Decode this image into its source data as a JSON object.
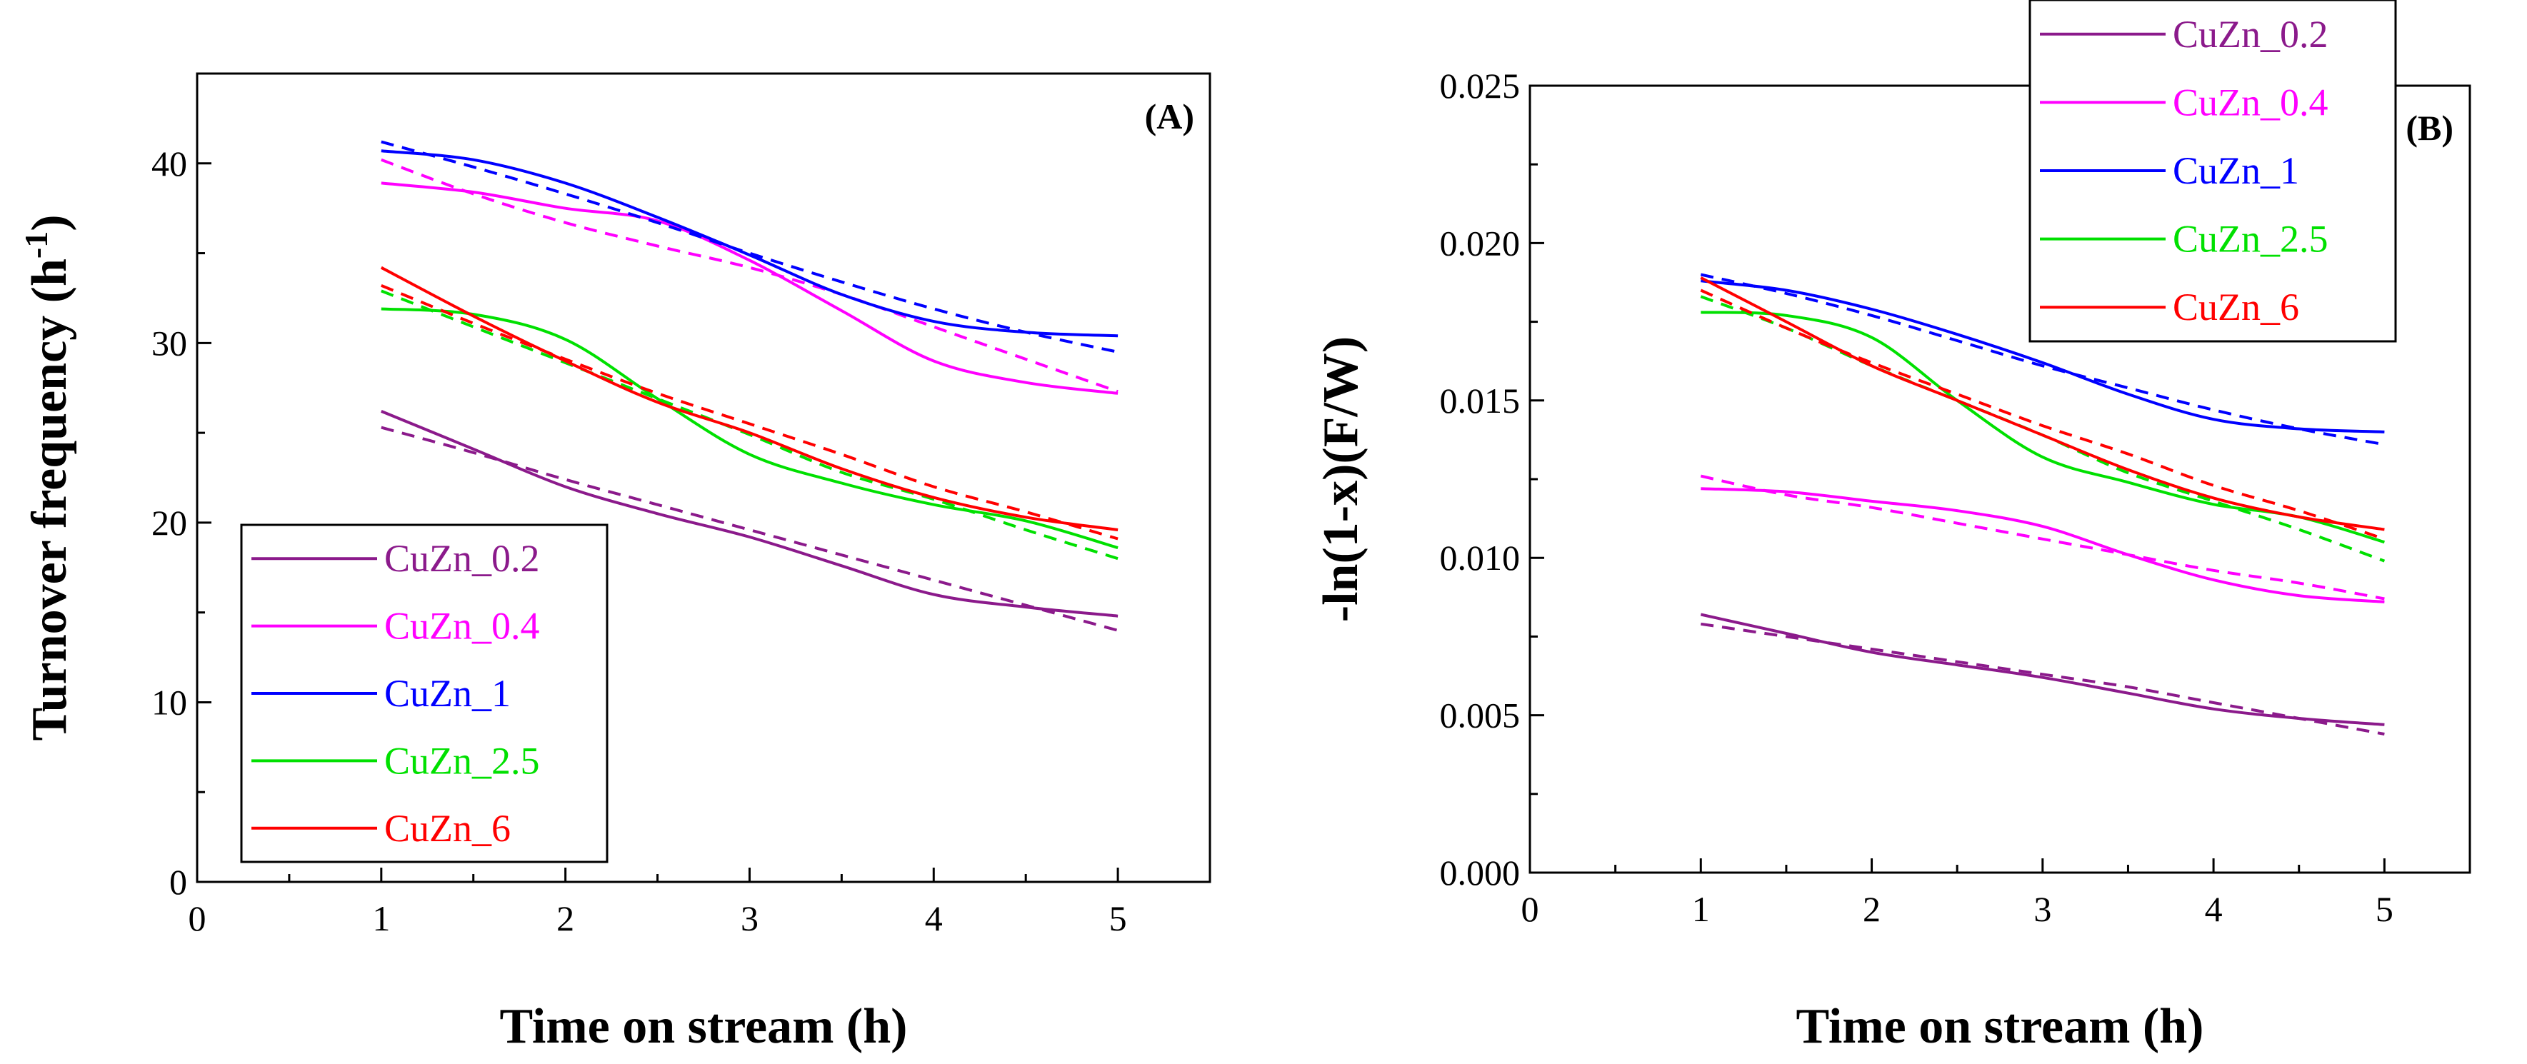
{
  "chart_data": [
    {
      "type": "line",
      "panel_label": "(A)",
      "xlabel": "Time on stream (h)",
      "ylabel": "Turnover frequency (h",
      "ylabel_sup": "-1",
      "ylabel_end": ")",
      "xlim": [
        0,
        5.5
      ],
      "ylim": [
        0,
        45
      ],
      "xticks": [
        "0",
        "1",
        "2",
        "3",
        "4",
        "5"
      ],
      "yticks": [
        "0",
        "10",
        "20",
        "30",
        "40"
      ],
      "legend_position": "bottom-left",
      "x": [
        1,
        1.5,
        2,
        2.5,
        3,
        3.5,
        4,
        4.5,
        5
      ],
      "series": [
        {
          "name": "CuZn_0.2",
          "color": "#8B1A8B",
          "solid": [
            26.2,
            24.1,
            22.0,
            20.5,
            19.2,
            17.6,
            16.0,
            15.3,
            14.8
          ],
          "dashed": [
            25.3,
            23.9,
            22.4,
            21.0,
            19.6,
            18.2,
            16.8,
            15.4,
            14.0
          ]
        },
        {
          "name": "CuZn_0.4",
          "color": "#FF00FF",
          "solid": [
            38.9,
            38.4,
            37.5,
            36.8,
            34.6,
            31.8,
            29.0,
            27.8,
            27.2
          ],
          "dashed": [
            40.2,
            38.3,
            36.7,
            35.4,
            34.2,
            32.7,
            30.9,
            29.1,
            27.3
          ]
        },
        {
          "name": "CuZn_1",
          "color": "#0000FF",
          "solid": [
            40.7,
            40.2,
            38.9,
            37.0,
            34.9,
            32.7,
            31.2,
            30.6,
            30.4
          ],
          "dashed": [
            41.2,
            39.8,
            38.3,
            36.7,
            35.0,
            33.4,
            31.9,
            30.6,
            29.5
          ]
        },
        {
          "name": "CuZn_2.5",
          "color": "#00E000",
          "solid": [
            31.9,
            31.6,
            30.2,
            26.9,
            23.8,
            22.2,
            21.0,
            20.1,
            18.6
          ],
          "dashed": [
            32.9,
            30.9,
            28.9,
            26.9,
            24.9,
            22.8,
            21.3,
            19.6,
            18.0
          ]
        },
        {
          "name": "CuZn_6",
          "color": "#FF0000",
          "solid": [
            34.2,
            31.5,
            29.0,
            26.7,
            25.0,
            23.0,
            21.4,
            20.3,
            19.6
          ],
          "dashed": [
            33.2,
            31.1,
            29.1,
            27.2,
            25.5,
            23.8,
            22.0,
            20.6,
            19.1
          ]
        }
      ]
    },
    {
      "type": "line",
      "panel_label": "(B)",
      "xlabel": "Time on stream (h)",
      "ylabel": "-ln(1-x)(F/W)",
      "xlim": [
        0,
        5.5
      ],
      "ylim": [
        0,
        0.025
      ],
      "xticks": [
        "0",
        "1",
        "2",
        "3",
        "4",
        "5"
      ],
      "yticks": [
        "0.000",
        "0.005",
        "0.010",
        "0.015",
        "0.020",
        "0.025"
      ],
      "legend_position": "top-right",
      "x": [
        1,
        1.5,
        2,
        2.5,
        3,
        3.5,
        4,
        4.5,
        5
      ],
      "series": [
        {
          "name": "CuZn_0.2",
          "color": "#8B1A8B",
          "solid": [
            0.0082,
            0.0076,
            0.007,
            0.0066,
            0.0062,
            0.0057,
            0.0052,
            0.0049,
            0.0047
          ],
          "dashed": [
            0.0079,
            0.0075,
            0.0071,
            0.0067,
            0.0063,
            0.0059,
            0.0054,
            0.0049,
            0.0044
          ]
        },
        {
          "name": "CuZn_0.4",
          "color": "#FF00FF",
          "solid": [
            0.0122,
            0.0121,
            0.0118,
            0.0115,
            0.011,
            0.0101,
            0.0093,
            0.0088,
            0.0086
          ],
          "dashed": [
            0.0126,
            0.012,
            0.0116,
            0.0111,
            0.0106,
            0.0101,
            0.0096,
            0.0092,
            0.0087
          ]
        },
        {
          "name": "CuZn_1",
          "color": "#0000FF",
          "solid": [
            0.0188,
            0.0185,
            0.0179,
            0.0171,
            0.0162,
            0.0152,
            0.0144,
            0.0141,
            0.014
          ],
          "dashed": [
            0.019,
            0.0184,
            0.0177,
            0.0169,
            0.0161,
            0.0154,
            0.0147,
            0.0141,
            0.0136
          ]
        },
        {
          "name": "CuZn_2.5",
          "color": "#00E000",
          "solid": [
            0.0178,
            0.0177,
            0.017,
            0.015,
            0.0132,
            0.0124,
            0.0117,
            0.0113,
            0.0105
          ],
          "dashed": [
            0.0183,
            0.0173,
            0.0161,
            0.015,
            0.0139,
            0.0127,
            0.0118,
            0.0109,
            0.0099
          ]
        },
        {
          "name": "CuZn_6",
          "color": "#FF0000",
          "solid": [
            0.0189,
            0.0175,
            0.0161,
            0.015,
            0.0139,
            0.0128,
            0.0119,
            0.0113,
            0.0109
          ],
          "dashed": [
            0.0185,
            0.0173,
            0.0162,
            0.0152,
            0.0142,
            0.0133,
            0.0123,
            0.0115,
            0.0106
          ]
        }
      ]
    }
  ]
}
